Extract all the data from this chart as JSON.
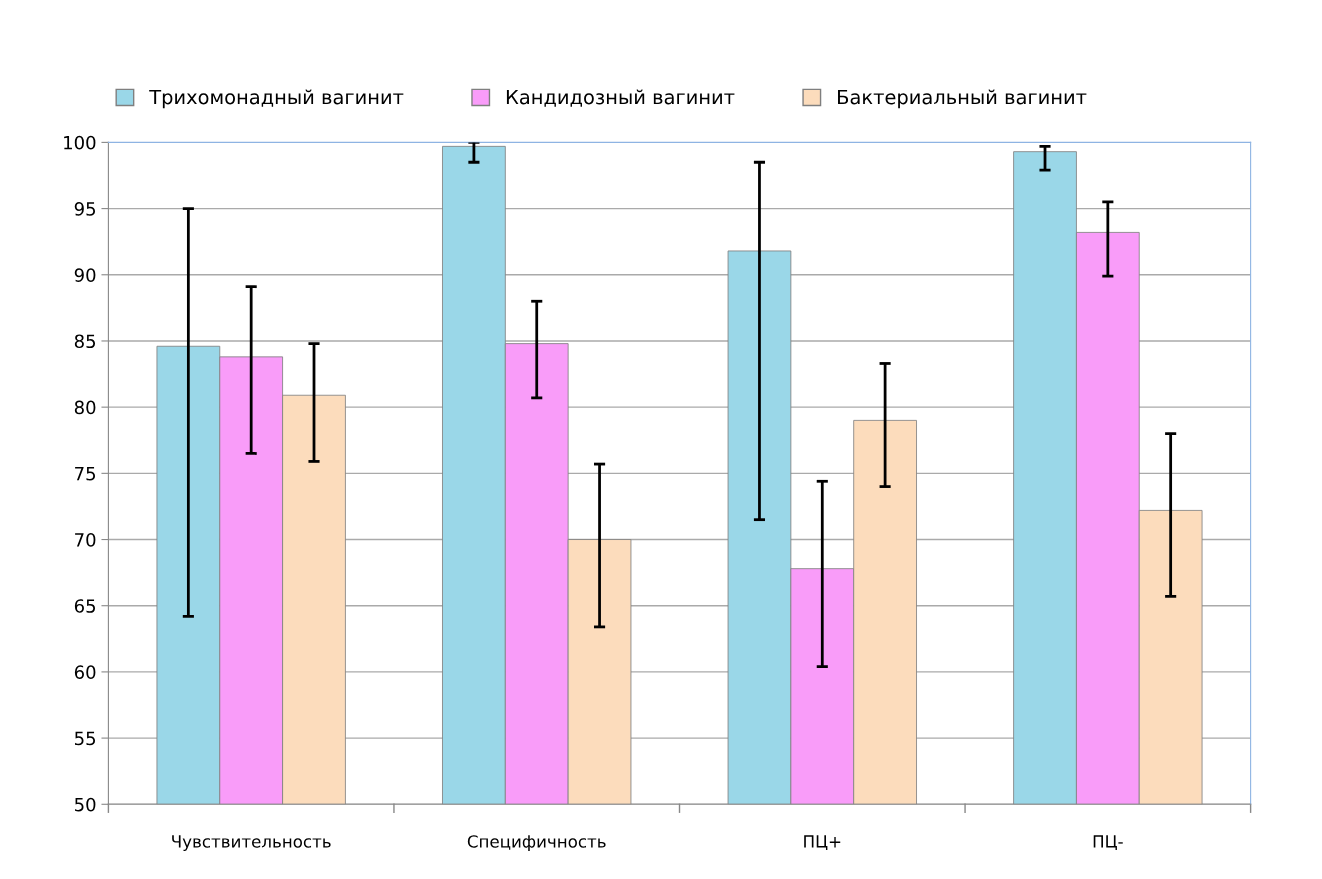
{
  "chart_data": {
    "type": "bar",
    "categories": [
      "Чувствительность",
      "Специфичность",
      "ПЦ+",
      "ПЦ-"
    ],
    "series": [
      {
        "name": "Трихомонадный вагинит",
        "color": "#9ad7e8",
        "values": [
          84.6,
          99.7,
          91.8,
          99.3
        ],
        "errors": [
          [
            64.2,
            95.0
          ],
          [
            98.5,
            100.0
          ],
          [
            71.5,
            98.5
          ],
          [
            97.9,
            99.7
          ]
        ]
      },
      {
        "name": "Кандидозный вагинит",
        "color": "#f99cf9",
        "values": [
          83.8,
          84.8,
          67.8,
          93.2
        ],
        "errors": [
          [
            76.5,
            89.1
          ],
          [
            80.7,
            88.0
          ],
          [
            60.4,
            74.4
          ],
          [
            89.9,
            95.5
          ]
        ]
      },
      {
        "name": "Бактериальный вагинит",
        "color": "#fcdcbc",
        "values": [
          80.9,
          70.0,
          79.0,
          72.2
        ],
        "errors": [
          [
            75.9,
            84.8
          ],
          [
            63.4,
            75.7
          ],
          [
            74.0,
            83.3
          ],
          [
            65.7,
            78.0
          ]
        ]
      }
    ],
    "ylim": [
      50,
      100
    ],
    "yticks": [
      50,
      55,
      60,
      65,
      70,
      75,
      80,
      85,
      90,
      95,
      100
    ],
    "grid": "y",
    "legend": "top"
  }
}
